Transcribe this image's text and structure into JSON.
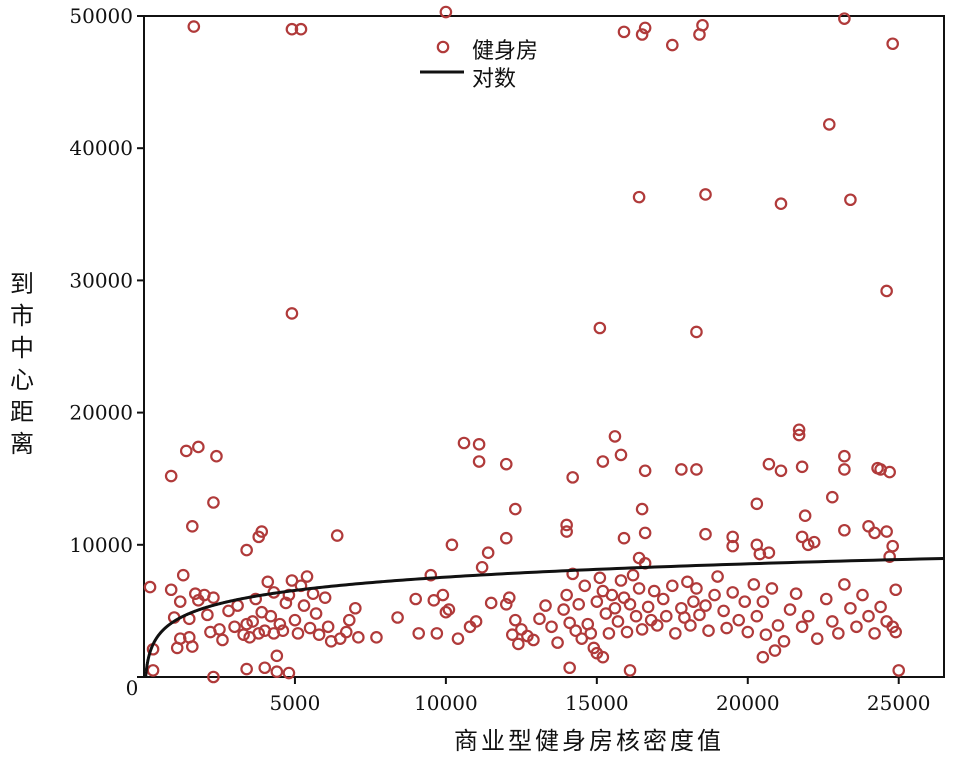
{
  "chart_data": {
    "type": "scatter",
    "xlabel": "商业型健身房核密度值",
    "ylabel": "到市中心距离",
    "xlim": [
      0,
      26500
    ],
    "ylim": [
      0,
      50000
    ],
    "x_ticks": [
      5000,
      10000,
      15000,
      20000,
      25000
    ],
    "y_ticks": [
      0,
      10000,
      20000,
      30000,
      40000,
      50000
    ],
    "x_origin_label": "0",
    "grid": false,
    "legend_position": "top-center",
    "colors": {
      "marker": "#b03a3a",
      "fit_line": "#111111"
    },
    "series": [
      {
        "name": "健身房",
        "kind": "scatter",
        "points": [
          [
            1650,
            49200
          ],
          [
            4900,
            49000
          ],
          [
            5200,
            49000
          ],
          [
            10000,
            50300
          ],
          [
            15900,
            48800
          ],
          [
            16500,
            48600
          ],
          [
            16600,
            49100
          ],
          [
            17500,
            47800
          ],
          [
            18400,
            48600
          ],
          [
            18500,
            49300
          ],
          [
            23200,
            49800
          ],
          [
            24800,
            47900
          ],
          [
            22700,
            41800
          ],
          [
            16400,
            36300
          ],
          [
            18600,
            36500
          ],
          [
            21100,
            35800
          ],
          [
            23400,
            36100
          ],
          [
            4900,
            27500
          ],
          [
            15100,
            26400
          ],
          [
            18300,
            26100
          ],
          [
            24600,
            29200
          ],
          [
            1400,
            17100
          ],
          [
            1800,
            17400
          ],
          [
            2400,
            16700
          ],
          [
            900,
            15200
          ],
          [
            2300,
            13200
          ],
          [
            1600,
            11400
          ],
          [
            3800,
            10600
          ],
          [
            3900,
            11000
          ],
          [
            3400,
            9600
          ],
          [
            6400,
            10700
          ],
          [
            10600,
            17700
          ],
          [
            11100,
            17600
          ],
          [
            11100,
            16300
          ],
          [
            12000,
            16100
          ],
          [
            12300,
            12700
          ],
          [
            12000,
            10500
          ],
          [
            11400,
            9400
          ],
          [
            10200,
            10000
          ],
          [
            11200,
            8300
          ],
          [
            15600,
            18200
          ],
          [
            15800,
            16800
          ],
          [
            15200,
            16300
          ],
          [
            16600,
            15600
          ],
          [
            14200,
            15100
          ],
          [
            14000,
            11500
          ],
          [
            14000,
            11000
          ],
          [
            16500,
            12700
          ],
          [
            16600,
            10900
          ],
          [
            15900,
            10500
          ],
          [
            16400,
            9000
          ],
          [
            17800,
            15700
          ],
          [
            18300,
            15700
          ],
          [
            18600,
            10800
          ],
          [
            19500,
            10600
          ],
          [
            19500,
            9900
          ],
          [
            20300,
            13100
          ],
          [
            20300,
            10000
          ],
          [
            20700,
            9400
          ],
          [
            20400,
            9300
          ],
          [
            20700,
            16100
          ],
          [
            21100,
            15600
          ],
          [
            21700,
            18700
          ],
          [
            21700,
            18300
          ],
          [
            21800,
            15900
          ],
          [
            21900,
            12200
          ],
          [
            21800,
            10600
          ],
          [
            22000,
            10000
          ],
          [
            22200,
            10200
          ],
          [
            22800,
            13600
          ],
          [
            23200,
            16700
          ],
          [
            23200,
            15700
          ],
          [
            23200,
            11100
          ],
          [
            24300,
            15800
          ],
          [
            24400,
            15700
          ],
          [
            24700,
            15500
          ],
          [
            24000,
            11400
          ],
          [
            24200,
            10900
          ],
          [
            24600,
            11000
          ],
          [
            24800,
            9900
          ],
          [
            24700,
            9100
          ],
          [
            200,
            6800
          ],
          [
            300,
            2100
          ],
          [
            300,
            500
          ],
          [
            900,
            6600
          ],
          [
            1000,
            4500
          ],
          [
            1200,
            5700
          ],
          [
            1200,
            2900
          ],
          [
            1100,
            2200
          ],
          [
            1300,
            7700
          ],
          [
            1500,
            4400
          ],
          [
            1500,
            3000
          ],
          [
            1600,
            2300
          ],
          [
            1700,
            6300
          ],
          [
            1800,
            5800
          ],
          [
            2000,
            6200
          ],
          [
            2100,
            4700
          ],
          [
            2200,
            3400
          ],
          [
            2300,
            6000
          ],
          [
            2500,
            3600
          ],
          [
            2600,
            2800
          ],
          [
            2800,
            5000
          ],
          [
            3000,
            3800
          ],
          [
            3100,
            5400
          ],
          [
            3300,
            3200
          ],
          [
            3400,
            4000
          ],
          [
            3500,
            3000
          ],
          [
            3600,
            4200
          ],
          [
            3700,
            5900
          ],
          [
            3800,
            3300
          ],
          [
            3900,
            4900
          ],
          [
            4000,
            3500
          ],
          [
            4100,
            7200
          ],
          [
            4200,
            4600
          ],
          [
            4300,
            3300
          ],
          [
            4300,
            6400
          ],
          [
            4400,
            1600
          ],
          [
            4500,
            4000
          ],
          [
            4600,
            3500
          ],
          [
            4700,
            5600
          ],
          [
            4800,
            6200
          ],
          [
            4900,
            7300
          ],
          [
            5000,
            4300
          ],
          [
            5100,
            3300
          ],
          [
            5200,
            6900
          ],
          [
            5300,
            5400
          ],
          [
            5400,
            7600
          ],
          [
            5500,
            3700
          ],
          [
            5600,
            6300
          ],
          [
            5700,
            4800
          ],
          [
            5800,
            3200
          ],
          [
            6000,
            6000
          ],
          [
            6100,
            3800
          ],
          [
            6200,
            2700
          ],
          [
            6500,
            2900
          ],
          [
            6700,
            3400
          ],
          [
            6800,
            4300
          ],
          [
            7000,
            5200
          ],
          [
            7100,
            3000
          ],
          [
            7700,
            3000
          ],
          [
            8400,
            4500
          ],
          [
            9000,
            5900
          ],
          [
            9100,
            3300
          ],
          [
            9500,
            7700
          ],
          [
            9600,
            5800
          ],
          [
            9700,
            3300
          ],
          [
            9900,
            6200
          ],
          [
            10000,
            4900
          ],
          [
            10100,
            5100
          ],
          [
            10400,
            2900
          ],
          [
            10800,
            3800
          ],
          [
            11000,
            4200
          ],
          [
            11500,
            5600
          ],
          [
            12000,
            5500
          ],
          [
            12100,
            6000
          ],
          [
            12200,
            3200
          ],
          [
            12300,
            4300
          ],
          [
            12400,
            2500
          ],
          [
            12500,
            3600
          ],
          [
            12700,
            3100
          ],
          [
            12900,
            2800
          ],
          [
            13100,
            4400
          ],
          [
            13300,
            5400
          ],
          [
            13500,
            3800
          ],
          [
            13700,
            2600
          ],
          [
            13900,
            5100
          ],
          [
            14000,
            6200
          ],
          [
            14100,
            4100
          ],
          [
            14200,
            7800
          ],
          [
            14300,
            3500
          ],
          [
            14400,
            5500
          ],
          [
            14500,
            2900
          ],
          [
            14600,
            6900
          ],
          [
            14700,
            4000
          ],
          [
            14800,
            3300
          ],
          [
            14900,
            2200
          ],
          [
            15000,
            5700
          ],
          [
            15100,
            7500
          ],
          [
            15200,
            6500
          ],
          [
            15300,
            4800
          ],
          [
            15400,
            3300
          ],
          [
            15500,
            6200
          ],
          [
            15600,
            5200
          ],
          [
            15700,
            4200
          ],
          [
            15800,
            7300
          ],
          [
            15900,
            6000
          ],
          [
            16000,
            3400
          ],
          [
            16100,
            5500
          ],
          [
            16200,
            7700
          ],
          [
            16300,
            4600
          ],
          [
            16400,
            6700
          ],
          [
            16500,
            3600
          ],
          [
            16600,
            8600
          ],
          [
            16700,
            5300
          ],
          [
            16800,
            4300
          ],
          [
            16900,
            6500
          ],
          [
            17000,
            3900
          ],
          [
            17200,
            5900
          ],
          [
            17300,
            4600
          ],
          [
            17500,
            6900
          ],
          [
            17600,
            3300
          ],
          [
            17800,
            5200
          ],
          [
            17900,
            4500
          ],
          [
            18000,
            7200
          ],
          [
            18100,
            3900
          ],
          [
            18200,
            5700
          ],
          [
            18300,
            6700
          ],
          [
            18400,
            4700
          ],
          [
            18600,
            5400
          ],
          [
            18700,
            3500
          ],
          [
            18900,
            6200
          ],
          [
            19000,
            7600
          ],
          [
            19200,
            5000
          ],
          [
            19300,
            3700
          ],
          [
            19500,
            6400
          ],
          [
            19700,
            4300
          ],
          [
            19900,
            5700
          ],
          [
            20000,
            3400
          ],
          [
            20200,
            7000
          ],
          [
            20300,
            4600
          ],
          [
            20500,
            5700
          ],
          [
            20600,
            3200
          ],
          [
            20800,
            6700
          ],
          [
            21000,
            3900
          ],
          [
            21200,
            2700
          ],
          [
            21400,
            5100
          ],
          [
            21600,
            6300
          ],
          [
            21800,
            3800
          ],
          [
            22000,
            4600
          ],
          [
            22300,
            2900
          ],
          [
            22600,
            5900
          ],
          [
            22800,
            4200
          ],
          [
            23000,
            3300
          ],
          [
            23200,
            7000
          ],
          [
            23400,
            5200
          ],
          [
            23600,
            3800
          ],
          [
            23800,
            6200
          ],
          [
            24000,
            4600
          ],
          [
            24200,
            3300
          ],
          [
            24400,
            5300
          ],
          [
            24600,
            4200
          ],
          [
            24800,
            3800
          ],
          [
            24900,
            6600
          ],
          [
            24900,
            3400
          ],
          [
            25000,
            500
          ],
          [
            4800,
            300
          ],
          [
            4400,
            400
          ],
          [
            3400,
            600
          ],
          [
            2300,
            0
          ],
          [
            4000,
            700
          ],
          [
            15000,
            1800
          ],
          [
            15200,
            1500
          ],
          [
            16100,
            500
          ],
          [
            14100,
            700
          ],
          [
            20500,
            1500
          ],
          [
            20900,
            2000
          ]
        ]
      },
      {
        "name": "对数",
        "kind": "line",
        "fit": {
          "a": -5800,
          "b": 1450
        }
      }
    ]
  },
  "legend": {
    "items": [
      {
        "label": "健身房"
      },
      {
        "label": "对数"
      }
    ]
  }
}
